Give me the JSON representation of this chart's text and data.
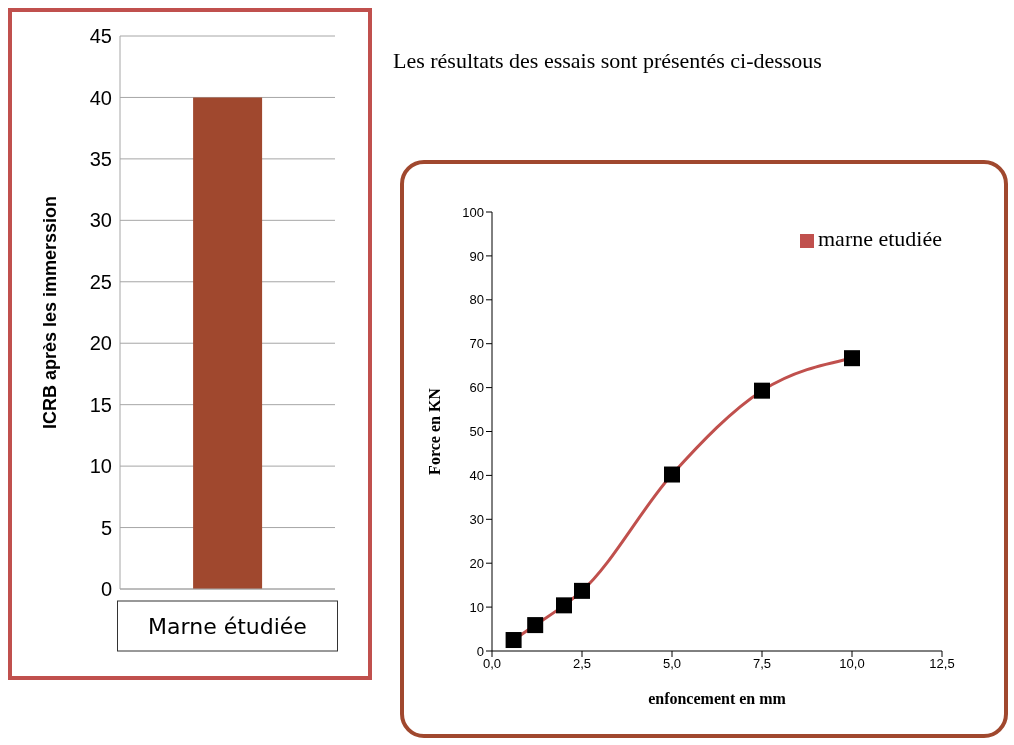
{
  "chart_data": [
    {
      "type": "bar",
      "ylabel": "ICRB après  les immerssion",
      "categories": [
        "Marne étudiée"
      ],
      "values": [
        40
      ],
      "color": "#a0482e",
      "ylim": [
        0,
        45
      ],
      "yticks": [
        0,
        5,
        10,
        15,
        20,
        25,
        30,
        35,
        40,
        45
      ],
      "grid": "y"
    },
    {
      "type": "line",
      "annotations": [
        "Les résultats des essais sont présentés ci-dessous"
      ],
      "xlabel": "enfoncement en mm",
      "ylabel": "Force en KN",
      "x": [
        0.6,
        1.2,
        2.0,
        2.5,
        5.0,
        7.5,
        10.0
      ],
      "series": [
        {
          "name": "marne etudiée",
          "color": "#c0504d",
          "values": [
            2.5,
            5.9,
            10.4,
            13.7,
            40.2,
            59.3,
            66.7
          ]
        }
      ],
      "xlim": [
        0,
        12.5
      ],
      "xticks": [
        {
          "value": 0,
          "label": "0,0"
        },
        {
          "value": 2.5,
          "label": "2,5"
        },
        {
          "value": 5,
          "label": "5,0"
        },
        {
          "value": 7.5,
          "label": "7,5"
        },
        {
          "value": 10,
          "label": "10,0"
        },
        {
          "value": 12.5,
          "label": "12,5"
        }
      ],
      "ylim": [
        0,
        100
      ],
      "yticks": [
        0,
        10,
        20,
        30,
        40,
        50,
        60,
        70,
        80,
        90,
        100
      ],
      "marker": "square",
      "legend": "top right",
      "grid": false
    }
  ]
}
